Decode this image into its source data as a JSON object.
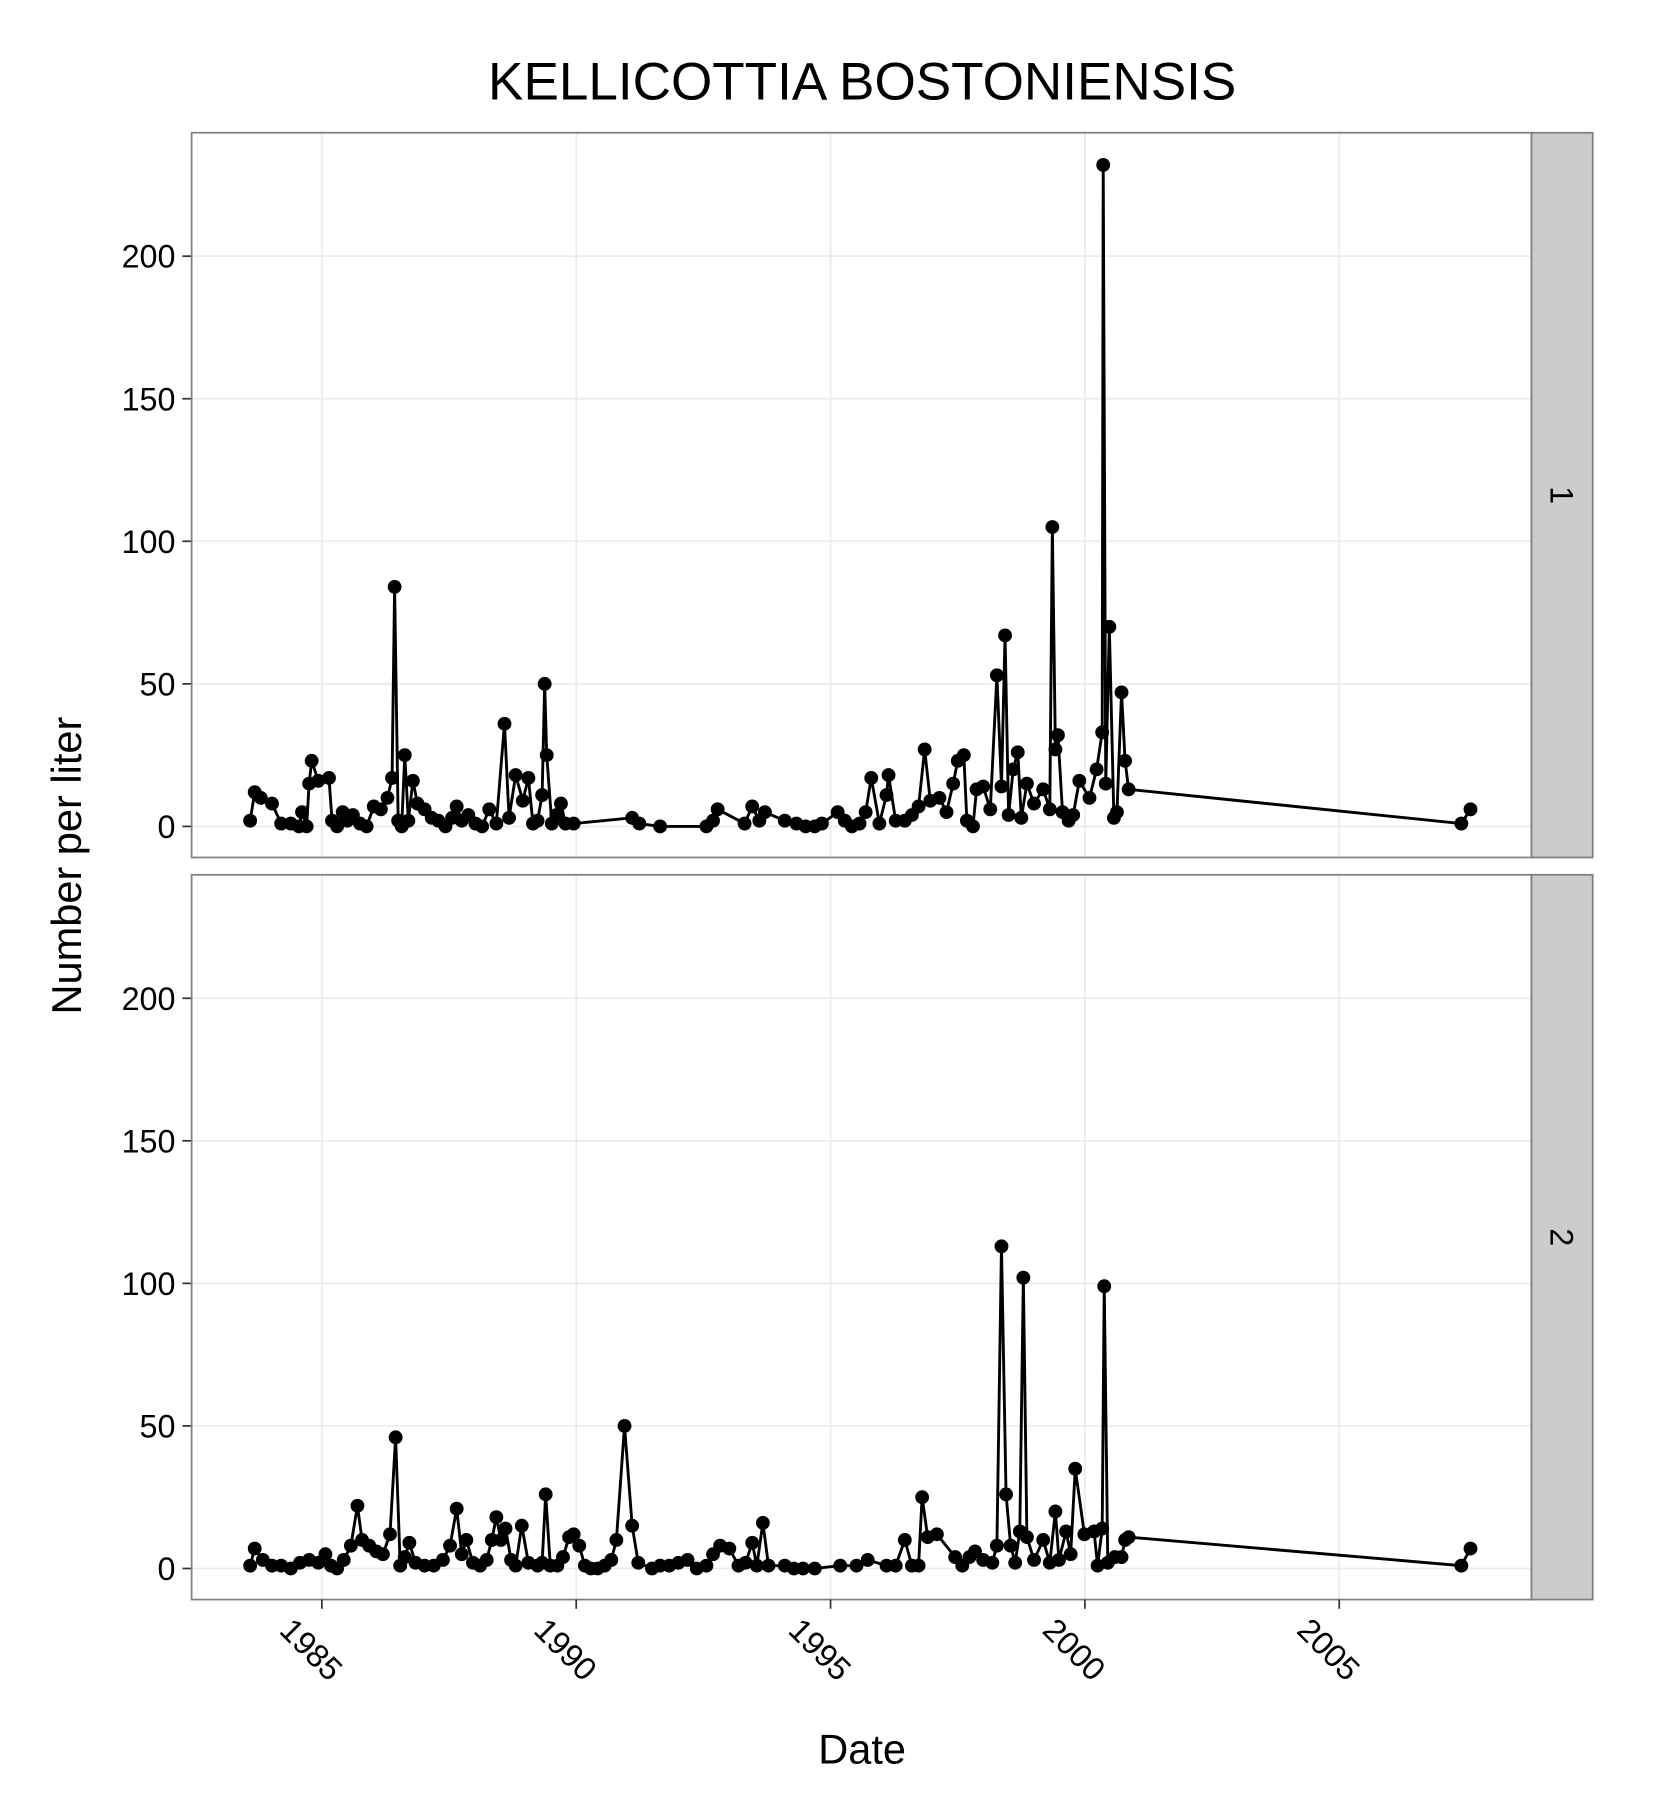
{
  "chart_data": {
    "type": "line",
    "title": "KELLICOTTIA BOSTONIENSIS",
    "x_label": "Date",
    "y_label": "Number per liter",
    "xlim": [
      1982.44,
      2008.78
    ],
    "xticks": [
      1985,
      1990,
      1995,
      2000,
      2005
    ],
    "ylim": [
      -10.9,
      243.3
    ],
    "yticks": [
      0,
      50,
      100,
      150,
      200
    ],
    "grid": true,
    "color": "#000000",
    "panels": [
      {
        "label": "1",
        "x": [
          1983.59,
          1983.68,
          1983.8,
          1984.02,
          1984.2,
          1984.39,
          1984.55,
          1984.61,
          1984.7,
          1984.75,
          1984.8,
          1984.93,
          1985.14,
          1985.2,
          1985.3,
          1985.41,
          1985.5,
          1985.61,
          1985.75,
          1985.88,
          1986.02,
          1986.16,
          1986.29,
          1986.38,
          1986.43,
          1986.5,
          1986.57,
          1986.63,
          1986.7,
          1986.79,
          1986.88,
          1987.02,
          1987.16,
          1987.29,
          1987.43,
          1987.56,
          1987.65,
          1987.75,
          1987.88,
          1988.02,
          1988.15,
          1988.29,
          1988.43,
          1988.59,
          1988.68,
          1988.81,
          1988.95,
          1989.06,
          1989.15,
          1989.24,
          1989.33,
          1989.38,
          1989.42,
          1989.52,
          1989.61,
          1989.7,
          1989.79,
          1989.95,
          1991.1,
          1991.24,
          1991.65,
          1992.56,
          1992.69,
          1992.78,
          1993.31,
          1993.46,
          1993.6,
          1993.71,
          1994.1,
          1994.33,
          1994.51,
          1994.69,
          1994.83,
          1995.14,
          1995.28,
          1995.42,
          1995.57,
          1995.69,
          1995.8,
          1995.96,
          1996.1,
          1996.14,
          1996.28,
          1996.46,
          1996.6,
          1996.73,
          1996.85,
          1996.96,
          1997.14,
          1997.28,
          1997.41,
          1997.5,
          1997.62,
          1997.68,
          1997.8,
          1997.87,
          1998.0,
          1998.14,
          1998.27,
          1998.36,
          1998.43,
          1998.5,
          1998.59,
          1998.68,
          1998.75,
          1998.86,
          1999.0,
          1999.18,
          1999.31,
          1999.36,
          1999.42,
          1999.47,
          1999.56,
          1999.68,
          1999.77,
          1999.89,
          2000.09,
          2000.23,
          2000.34,
          2000.36,
          2000.41,
          2000.48,
          2000.57,
          2000.63,
          2000.72,
          2000.79,
          2000.86,
          2007.4,
          2007.58
        ],
        "values": [
          2,
          12,
          10,
          8,
          1,
          1,
          0,
          5,
          0,
          15,
          23,
          16,
          17,
          2,
          0,
          5,
          2,
          4,
          1,
          0,
          7,
          6,
          10,
          17,
          84,
          2,
          0,
          25,
          2,
          16,
          8,
          6,
          3,
          2,
          0,
          3,
          7,
          2,
          4,
          1,
          0,
          6,
          1,
          36,
          3,
          18,
          9,
          17,
          1,
          2,
          11,
          50,
          25,
          1,
          4,
          8,
          1,
          1,
          3,
          1,
          0,
          0,
          2,
          6,
          1,
          7,
          2,
          5,
          2,
          1,
          0,
          0,
          1,
          5,
          2,
          0,
          1,
          5,
          17,
          1,
          11,
          18,
          2,
          2,
          4,
          7,
          27,
          9,
          10,
          5,
          15,
          23,
          25,
          2,
          0,
          13,
          14,
          6,
          53,
          14,
          67,
          4,
          20,
          26,
          3,
          15,
          8,
          13,
          6,
          105,
          27,
          32,
          5,
          2,
          4,
          16,
          10,
          20,
          33,
          232,
          15,
          70,
          3,
          5,
          47,
          23,
          13,
          1,
          6
        ]
      },
      {
        "label": "2",
        "x": [
          1983.59,
          1983.68,
          1983.84,
          1984.02,
          1984.2,
          1984.39,
          1984.57,
          1984.75,
          1984.93,
          1985.07,
          1985.18,
          1985.3,
          1985.43,
          1985.57,
          1985.7,
          1985.79,
          1985.93,
          1986.07,
          1986.2,
          1986.34,
          1986.45,
          1986.54,
          1986.63,
          1986.72,
          1986.84,
          1987.02,
          1987.2,
          1987.38,
          1987.52,
          1987.65,
          1987.75,
          1987.84,
          1987.97,
          1988.11,
          1988.24,
          1988.34,
          1988.43,
          1988.52,
          1988.61,
          1988.72,
          1988.81,
          1988.93,
          1989.06,
          1989.24,
          1989.33,
          1989.4,
          1989.49,
          1989.63,
          1989.74,
          1989.86,
          1989.95,
          1990.06,
          1990.17,
          1990.29,
          1990.42,
          1990.56,
          1990.69,
          1990.79,
          1990.95,
          1991.1,
          1991.22,
          1991.49,
          1991.65,
          1991.83,
          1992.01,
          1992.19,
          1992.37,
          1992.56,
          1992.69,
          1992.83,
          1993.01,
          1993.19,
          1993.33,
          1993.46,
          1993.55,
          1993.67,
          1993.78,
          1994.1,
          1994.28,
          1994.46,
          1994.69,
          1995.19,
          1995.51,
          1995.73,
          1996.1,
          1996.28,
          1996.46,
          1996.6,
          1996.73,
          1996.8,
          1996.91,
          1997.09,
          1997.45,
          1997.59,
          1997.73,
          1997.84,
          1998.0,
          1998.18,
          1998.27,
          1998.36,
          1998.45,
          1998.54,
          1998.63,
          1998.72,
          1998.79,
          1998.86,
          1999.0,
          1999.18,
          1999.31,
          1999.42,
          1999.49,
          1999.63,
          1999.72,
          1999.81,
          1999.99,
          2000.18,
          2000.25,
          2000.34,
          2000.38,
          2000.45,
          2000.59,
          2000.72,
          2000.79,
          2000.86,
          2007.4,
          2007.58
        ],
        "values": [
          1,
          7,
          3,
          1,
          1,
          0,
          2,
          3,
          2,
          5,
          1,
          0,
          3,
          8,
          22,
          10,
          8,
          6,
          5,
          12,
          46,
          1,
          4,
          9,
          2,
          1,
          1,
          3,
          8,
          21,
          5,
          10,
          2,
          1,
          3,
          10,
          18,
          10,
          14,
          3,
          1,
          15,
          2,
          1,
          2,
          26,
          1,
          1,
          4,
          11,
          12,
          8,
          1,
          0,
          0,
          1,
          3,
          10,
          50,
          15,
          2,
          0,
          1,
          1,
          2,
          3,
          0,
          1,
          5,
          8,
          7,
          1,
          2,
          9,
          1,
          16,
          1,
          1,
          0,
          0,
          0,
          1,
          1,
          3,
          1,
          1,
          10,
          1,
          1,
          25,
          11,
          12,
          4,
          1,
          4,
          6,
          3,
          2,
          8,
          113,
          26,
          8,
          2,
          13,
          102,
          11,
          3,
          10,
          2,
          20,
          3,
          13,
          5,
          35,
          12,
          13,
          1,
          14,
          99,
          2,
          4,
          4,
          10,
          11,
          1,
          7
        ]
      }
    ]
  }
}
